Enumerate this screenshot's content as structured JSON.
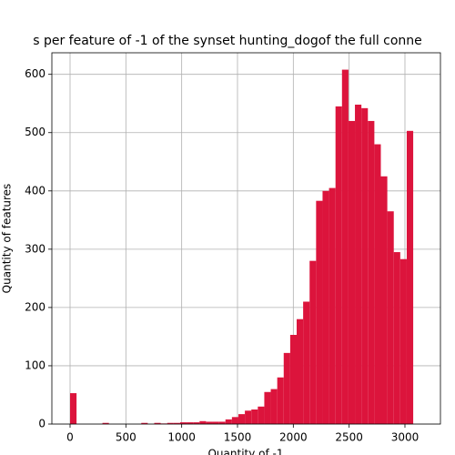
{
  "chart_data": {
    "type": "histogram",
    "title": "s per feature of -1 of the synset hunting_dogof the full conne",
    "xlabel": "Quantity of -1",
    "ylabel": "Quantity of features",
    "bins": [
      0,
      58,
      116,
      174,
      232,
      290,
      348,
      406,
      464,
      522,
      580,
      638,
      696,
      754,
      812,
      870,
      928,
      986,
      1044,
      1102,
      1160,
      1218,
      1276,
      1334,
      1392,
      1450,
      1508,
      1566,
      1624,
      1682,
      1740,
      1798,
      1856,
      1914,
      1972,
      2030,
      2088,
      2146,
      2204,
      2262,
      2320,
      2378,
      2436,
      2494,
      2552,
      2610,
      2668,
      2726,
      2784,
      2842,
      2900,
      2958,
      3016,
      3074,
      3132
    ],
    "values": [
      53,
      0,
      0,
      0,
      0,
      2,
      0,
      0,
      0,
      0,
      0,
      2,
      0,
      2,
      1,
      2,
      2,
      3,
      3,
      3,
      5,
      4,
      4,
      4,
      8,
      12,
      17,
      23,
      25,
      30,
      55,
      60,
      80,
      122,
      153,
      180,
      210,
      280,
      383,
      400,
      405,
      545,
      608,
      520,
      548,
      542,
      520,
      480,
      425,
      365,
      295,
      283,
      503,
      0
    ],
    "color": "#dc143c",
    "xlim": [
      -163,
      3318
    ],
    "ylim": [
      0,
      637
    ],
    "xticks": [
      0,
      500,
      1000,
      1500,
      2000,
      2500,
      3000
    ],
    "yticks": [
      0,
      100,
      200,
      300,
      400,
      500,
      600
    ],
    "grid": true
  }
}
